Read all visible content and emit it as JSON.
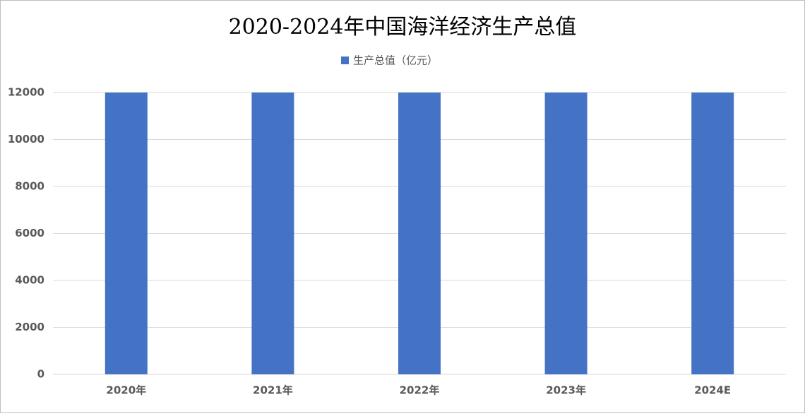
{
  "chart_data": {
    "type": "bar",
    "title": "2020-2024年中国海洋经济生产总值",
    "categories": [
      "2020年",
      "2021年",
      "2022年",
      "2023年",
      "2024E"
    ],
    "series": [
      {
        "name": "生产总值（亿元）",
        "color": "#4472c4",
        "values": [
          12000,
          12000,
          12000,
          12000,
          12000
        ]
      }
    ],
    "ylim": [
      0,
      12000
    ],
    "yticks": [
      0,
      2000,
      4000,
      6000,
      8000,
      10000,
      12000
    ],
    "grid": true,
    "legend": "top"
  }
}
